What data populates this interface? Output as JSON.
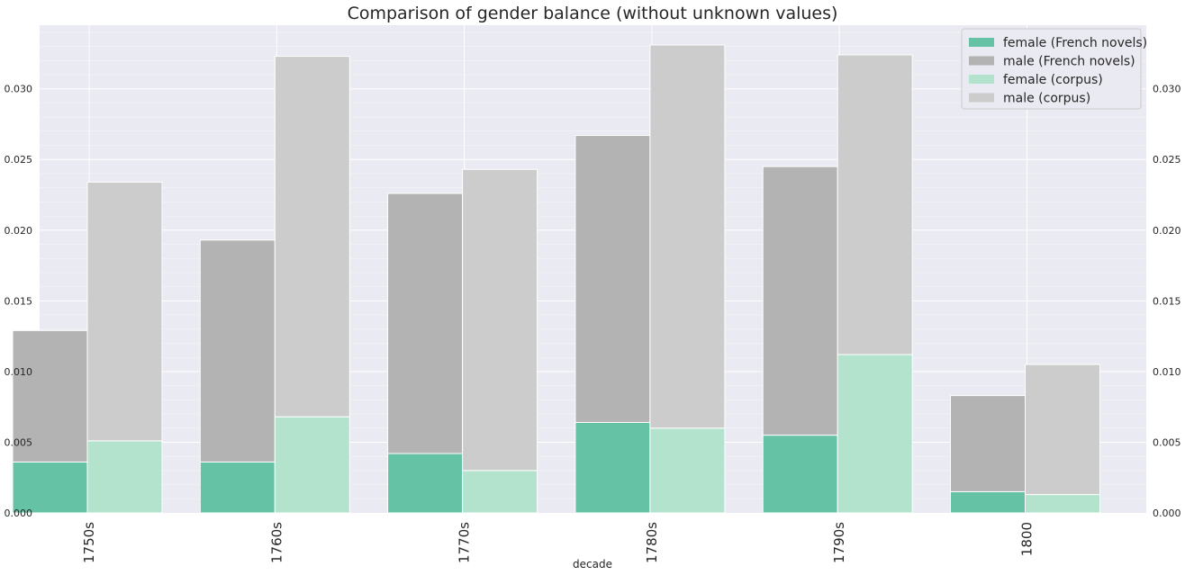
{
  "chart_data": {
    "type": "bar",
    "title": "Comparison of gender balance (without unknown values)",
    "xlabel": "decade",
    "ylabel": "",
    "ylim": [
      0,
      0.0345
    ],
    "yticks": [
      "0.000",
      "0.005",
      "0.010",
      "0.015",
      "0.020",
      "0.025",
      "0.030"
    ],
    "categories": [
      "1750s",
      "1760s",
      "1770s",
      "1780s",
      "1790s",
      "1800"
    ],
    "stacked": true,
    "grid": true,
    "legend_position": "top-right",
    "groups": [
      {
        "key": "french",
        "series": [
          {
            "name": "female (French novels)",
            "color": "#66c2a5",
            "values": [
              0.0036,
              0.0036,
              0.0042,
              0.0064,
              0.0055,
              0.0015
            ]
          },
          {
            "name": "male (French novels)",
            "color": "#b3b3b3",
            "values": [
              0.0093,
              0.0157,
              0.0184,
              0.0203,
              0.019,
              0.0068
            ]
          }
        ]
      },
      {
        "key": "corpus",
        "series": [
          {
            "name": "female (corpus)",
            "color": "#b3e2cd",
            "values": [
              0.0051,
              0.0068,
              0.003,
              0.006,
              0.0112,
              0.0013
            ]
          },
          {
            "name": "male (corpus)",
            "color": "#cccccc",
            "values": [
              0.0183,
              0.0255,
              0.0213,
              0.0271,
              0.0212,
              0.0092
            ]
          }
        ]
      }
    ],
    "legend": [
      "female (French novels)",
      "male (French novels)",
      "female (corpus)",
      "male (corpus)"
    ]
  }
}
